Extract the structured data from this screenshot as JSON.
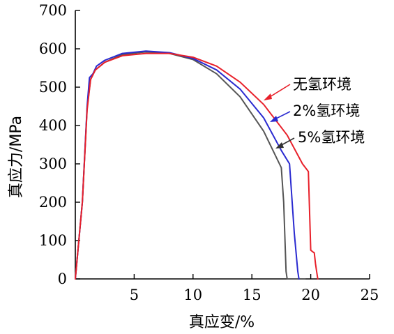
{
  "chart_data": {
    "type": "line",
    "title": "",
    "xlabel": "真应变/%",
    "ylabel": "真应力/MPa",
    "xlim": [
      0,
      25
    ],
    "ylim": [
      0,
      700
    ],
    "xticks": [
      5,
      10,
      15,
      20,
      25
    ],
    "yticks": [
      0,
      100,
      200,
      300,
      400,
      500,
      600,
      700
    ],
    "grid": false,
    "legend_placement": "right",
    "series": [
      {
        "name": "无氢环境",
        "color": "#e8202a",
        "x": [
          0,
          0.6,
          1.0,
          1.3,
          1.7,
          2.5,
          4,
          6,
          8,
          10,
          12,
          14,
          16,
          18,
          19.3,
          19.8,
          20.0,
          20.2,
          20.3,
          20.4,
          20.5,
          20.6
        ],
        "y": [
          0,
          200,
          440,
          520,
          545,
          565,
          582,
          588,
          588,
          578,
          555,
          513,
          455,
          375,
          300,
          280,
          75,
          70,
          68,
          40,
          20,
          0
        ]
      },
      {
        "name": "2%氢环境",
        "color": "#2a2ad0",
        "x": [
          0,
          0.6,
          1.0,
          1.2,
          1.5,
          1.8,
          2.5,
          4,
          6,
          8,
          10,
          12,
          14,
          16,
          17.5,
          18.2,
          18.6,
          18.9,
          19.0
        ],
        "y": [
          0,
          200,
          450,
          525,
          535,
          555,
          570,
          588,
          594,
          590,
          575,
          545,
          495,
          420,
          335,
          300,
          120,
          20,
          0
        ]
      },
      {
        "name": "5%氢环境",
        "color": "#555555",
        "x": [
          0,
          0.6,
          1.0,
          1.3,
          1.7,
          2.5,
          4,
          6,
          8,
          10,
          12,
          14,
          16,
          17.5,
          17.7,
          17.9,
          18.0,
          19.5
        ],
        "y": [
          0,
          200,
          445,
          520,
          545,
          565,
          585,
          592,
          588,
          572,
          535,
          475,
          385,
          290,
          200,
          20,
          0,
          0
        ]
      }
    ]
  }
}
